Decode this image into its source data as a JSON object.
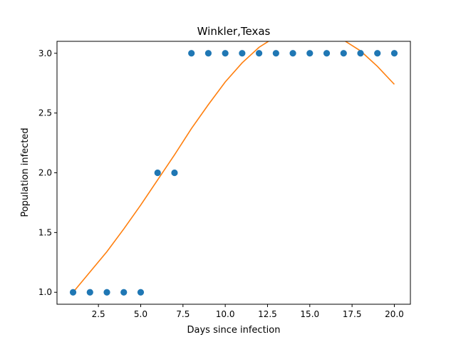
{
  "chart_data": {
    "type": "scatter",
    "title": "Winkler,Texas",
    "xlabel": "Days since infection",
    "ylabel": "Population infected",
    "xlim": [
      0.05,
      20.95
    ],
    "ylim": [
      0.9,
      3.1
    ],
    "xticks": [
      2.5,
      5.0,
      7.5,
      10.0,
      12.5,
      15.0,
      17.5,
      20.0
    ],
    "xtick_labels": [
      "2.5",
      "5.0",
      "7.5",
      "10.0",
      "12.5",
      "15.0",
      "17.5",
      "20.0"
    ],
    "yticks": [
      1.0,
      1.5,
      2.0,
      2.5,
      3.0
    ],
    "ytick_labels": [
      "1.0",
      "1.5",
      "2.0",
      "2.5",
      "3.0"
    ],
    "grid": false,
    "series": [
      {
        "kind": "scatter",
        "color": "#1f77b4",
        "x": [
          1,
          2,
          3,
          4,
          5,
          6,
          7,
          8,
          9,
          10,
          11,
          12,
          13,
          14,
          15,
          16,
          17,
          18,
          19,
          20
        ],
        "y": [
          1,
          1,
          1,
          1,
          1,
          2,
          2,
          3,
          3,
          3,
          3,
          3,
          3,
          3,
          3,
          3,
          3,
          3,
          3,
          3
        ]
      },
      {
        "kind": "line",
        "color": "#ff7f0e",
        "x": [
          1,
          2,
          3,
          4,
          5,
          6,
          7,
          8,
          9,
          10,
          11,
          12,
          13,
          14,
          15,
          16,
          17,
          18,
          19,
          20
        ],
        "y": [
          1.0,
          1.17,
          1.34,
          1.53,
          1.73,
          1.94,
          2.15,
          2.37,
          2.57,
          2.76,
          2.92,
          3.05,
          3.14,
          3.19,
          3.2,
          3.17,
          3.11,
          3.02,
          2.89,
          2.74
        ]
      }
    ]
  }
}
